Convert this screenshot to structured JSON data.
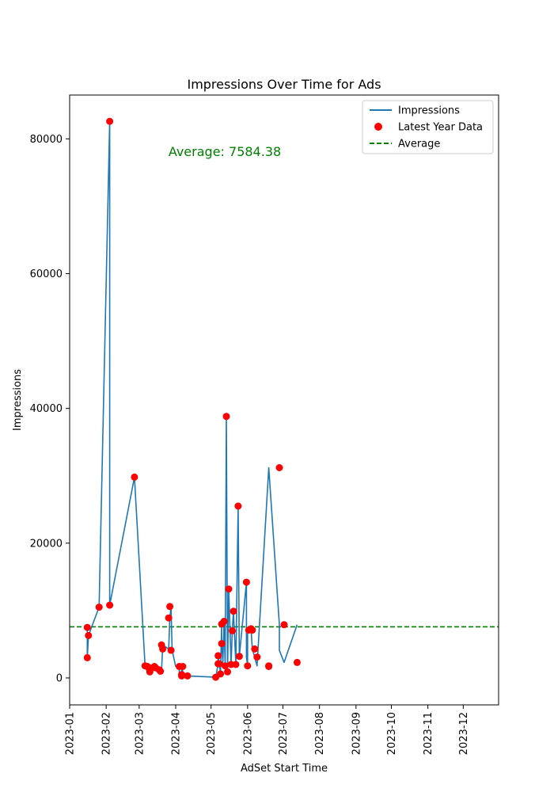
{
  "chart_data": {
    "type": "line",
    "title": "Impressions Over Time for Ads",
    "xlabel": "AdSet Start Time",
    "ylabel": "Impressions",
    "xlim": [
      "2023-01-01",
      "2023-12-31"
    ],
    "ylim": [
      -4000,
      86500
    ],
    "x_ticks": [
      "2023-01",
      "2023-02",
      "2023-03",
      "2023-04",
      "2023-05",
      "2023-06",
      "2023-07",
      "2023-08",
      "2023-09",
      "2023-10",
      "2023-11",
      "2023-12"
    ],
    "y_ticks": [
      0,
      20000,
      40000,
      60000,
      80000
    ],
    "grid": false,
    "legend_position": "top-right",
    "average": 7584.38,
    "annotation": "Average: 7584.38",
    "colors": {
      "line": "#1f77b4",
      "points": "#ff0000",
      "average": "#008000"
    },
    "series": [
      {
        "name": "Impressions",
        "style": "line",
        "x": [
          "2023-01-16",
          "2023-01-16",
          "2023-01-17",
          "2023-01-26",
          "2023-02-04",
          "2023-02-04",
          "2023-02-25",
          "2023-03-06",
          "2023-03-08",
          "2023-03-09",
          "2023-03-10",
          "2023-03-11",
          "2023-03-12",
          "2023-03-14",
          "2023-03-15",
          "2023-03-18",
          "2023-03-19",
          "2023-03-20",
          "2023-03-21",
          "2023-03-26",
          "2023-03-26",
          "2023-03-27",
          "2023-03-28",
          "2023-03-29",
          "2023-04-01",
          "2023-04-04",
          "2023-04-04",
          "2023-04-06",
          "2023-04-06",
          "2023-04-07",
          "2023-04-07",
          "2023-04-11",
          "2023-04-11",
          "2023-04-11",
          "2023-05-05",
          "2023-05-07",
          "2023-05-07",
          "2023-05-08",
          "2023-05-09",
          "2023-05-10",
          "2023-05-10",
          "2023-05-11",
          "2023-05-12",
          "2023-05-13",
          "2023-05-14",
          "2023-05-15",
          "2023-05-16",
          "2023-05-18",
          "2023-05-19",
          "2023-05-20",
          "2023-05-22",
          "2023-05-24",
          "2023-05-25",
          "2023-05-31",
          "2023-05-31",
          "2023-06-01",
          "2023-06-01",
          "2023-06-02",
          "2023-06-04",
          "2023-06-05",
          "2023-06-07",
          "2023-06-09",
          "2023-06-19",
          "2023-06-28",
          "2023-06-28",
          "2023-06-28",
          "2023-07-02",
          "2023-07-13"
        ],
        "values": [
          7500,
          3000,
          6300,
          10500,
          82600,
          10800,
          29800,
          1800,
          1700,
          1500,
          900,
          1100,
          1500,
          1700,
          1500,
          1200,
          1200,
          1000,
          4900,
          4300,
          4200,
          8900,
          10600,
          4100,
          1700,
          1500,
          500,
          300,
          1700,
          1000,
          400,
          300,
          400,
          300,
          100,
          2100,
          3300,
          2100,
          600,
          8000,
          5100,
          2300,
          8400,
          1800,
          38800,
          900,
          13200,
          2000,
          7000,
          9900,
          2000,
          25500,
          3200,
          14200,
          3100,
          1800,
          7100,
          7300,
          7100,
          4300,
          3100,
          1800,
          31200,
          7900,
          5200,
          4100,
          2300,
          7900
        ]
      },
      {
        "name": "Latest Year Data",
        "style": "scatter",
        "x": [
          "2023-01-16",
          "2023-01-16",
          "2023-01-17",
          "2023-01-26",
          "2023-02-04",
          "2023-02-04",
          "2023-02-25",
          "2023-03-06",
          "2023-03-08",
          "2023-03-09",
          "2023-03-10",
          "2023-03-12",
          "2023-03-14",
          "2023-03-15",
          "2023-03-18",
          "2023-03-19",
          "2023-03-20",
          "2023-03-21",
          "2023-03-26",
          "2023-03-27",
          "2023-03-28",
          "2023-04-04",
          "2023-04-06",
          "2023-04-06",
          "2023-04-07",
          "2023-04-11",
          "2023-05-05",
          "2023-05-07",
          "2023-05-07",
          "2023-05-08",
          "2023-05-09",
          "2023-05-10",
          "2023-05-10",
          "2023-05-12",
          "2023-05-13",
          "2023-05-14",
          "2023-05-15",
          "2023-05-16",
          "2023-05-18",
          "2023-05-19",
          "2023-05-20",
          "2023-05-22",
          "2023-05-24",
          "2023-05-25",
          "2023-05-31",
          "2023-06-01",
          "2023-06-02",
          "2023-06-04",
          "2023-06-05",
          "2023-06-07",
          "2023-06-09",
          "2023-06-19",
          "2023-06-19",
          "2023-06-28",
          "2023-07-02",
          "2023-07-13"
        ],
        "values": [
          7500,
          3000,
          6300,
          10500,
          82600,
          10800,
          29800,
          1800,
          1700,
          1500,
          900,
          1500,
          1700,
          1500,
          1200,
          1000,
          4900,
          4300,
          8900,
          10600,
          4100,
          1700,
          500,
          300,
          1700,
          300,
          100,
          2100,
          3300,
          2100,
          600,
          8000,
          5100,
          8400,
          1800,
          38800,
          900,
          13200,
          2000,
          7000,
          9900,
          2000,
          25500,
          3200,
          14200,
          1800,
          7100,
          7300,
          7100,
          4300,
          3100,
          1800,
          1700,
          31200,
          7900,
          2300
        ]
      },
      {
        "name": "Average",
        "style": "hline",
        "values": [
          7584.38
        ]
      }
    ]
  }
}
